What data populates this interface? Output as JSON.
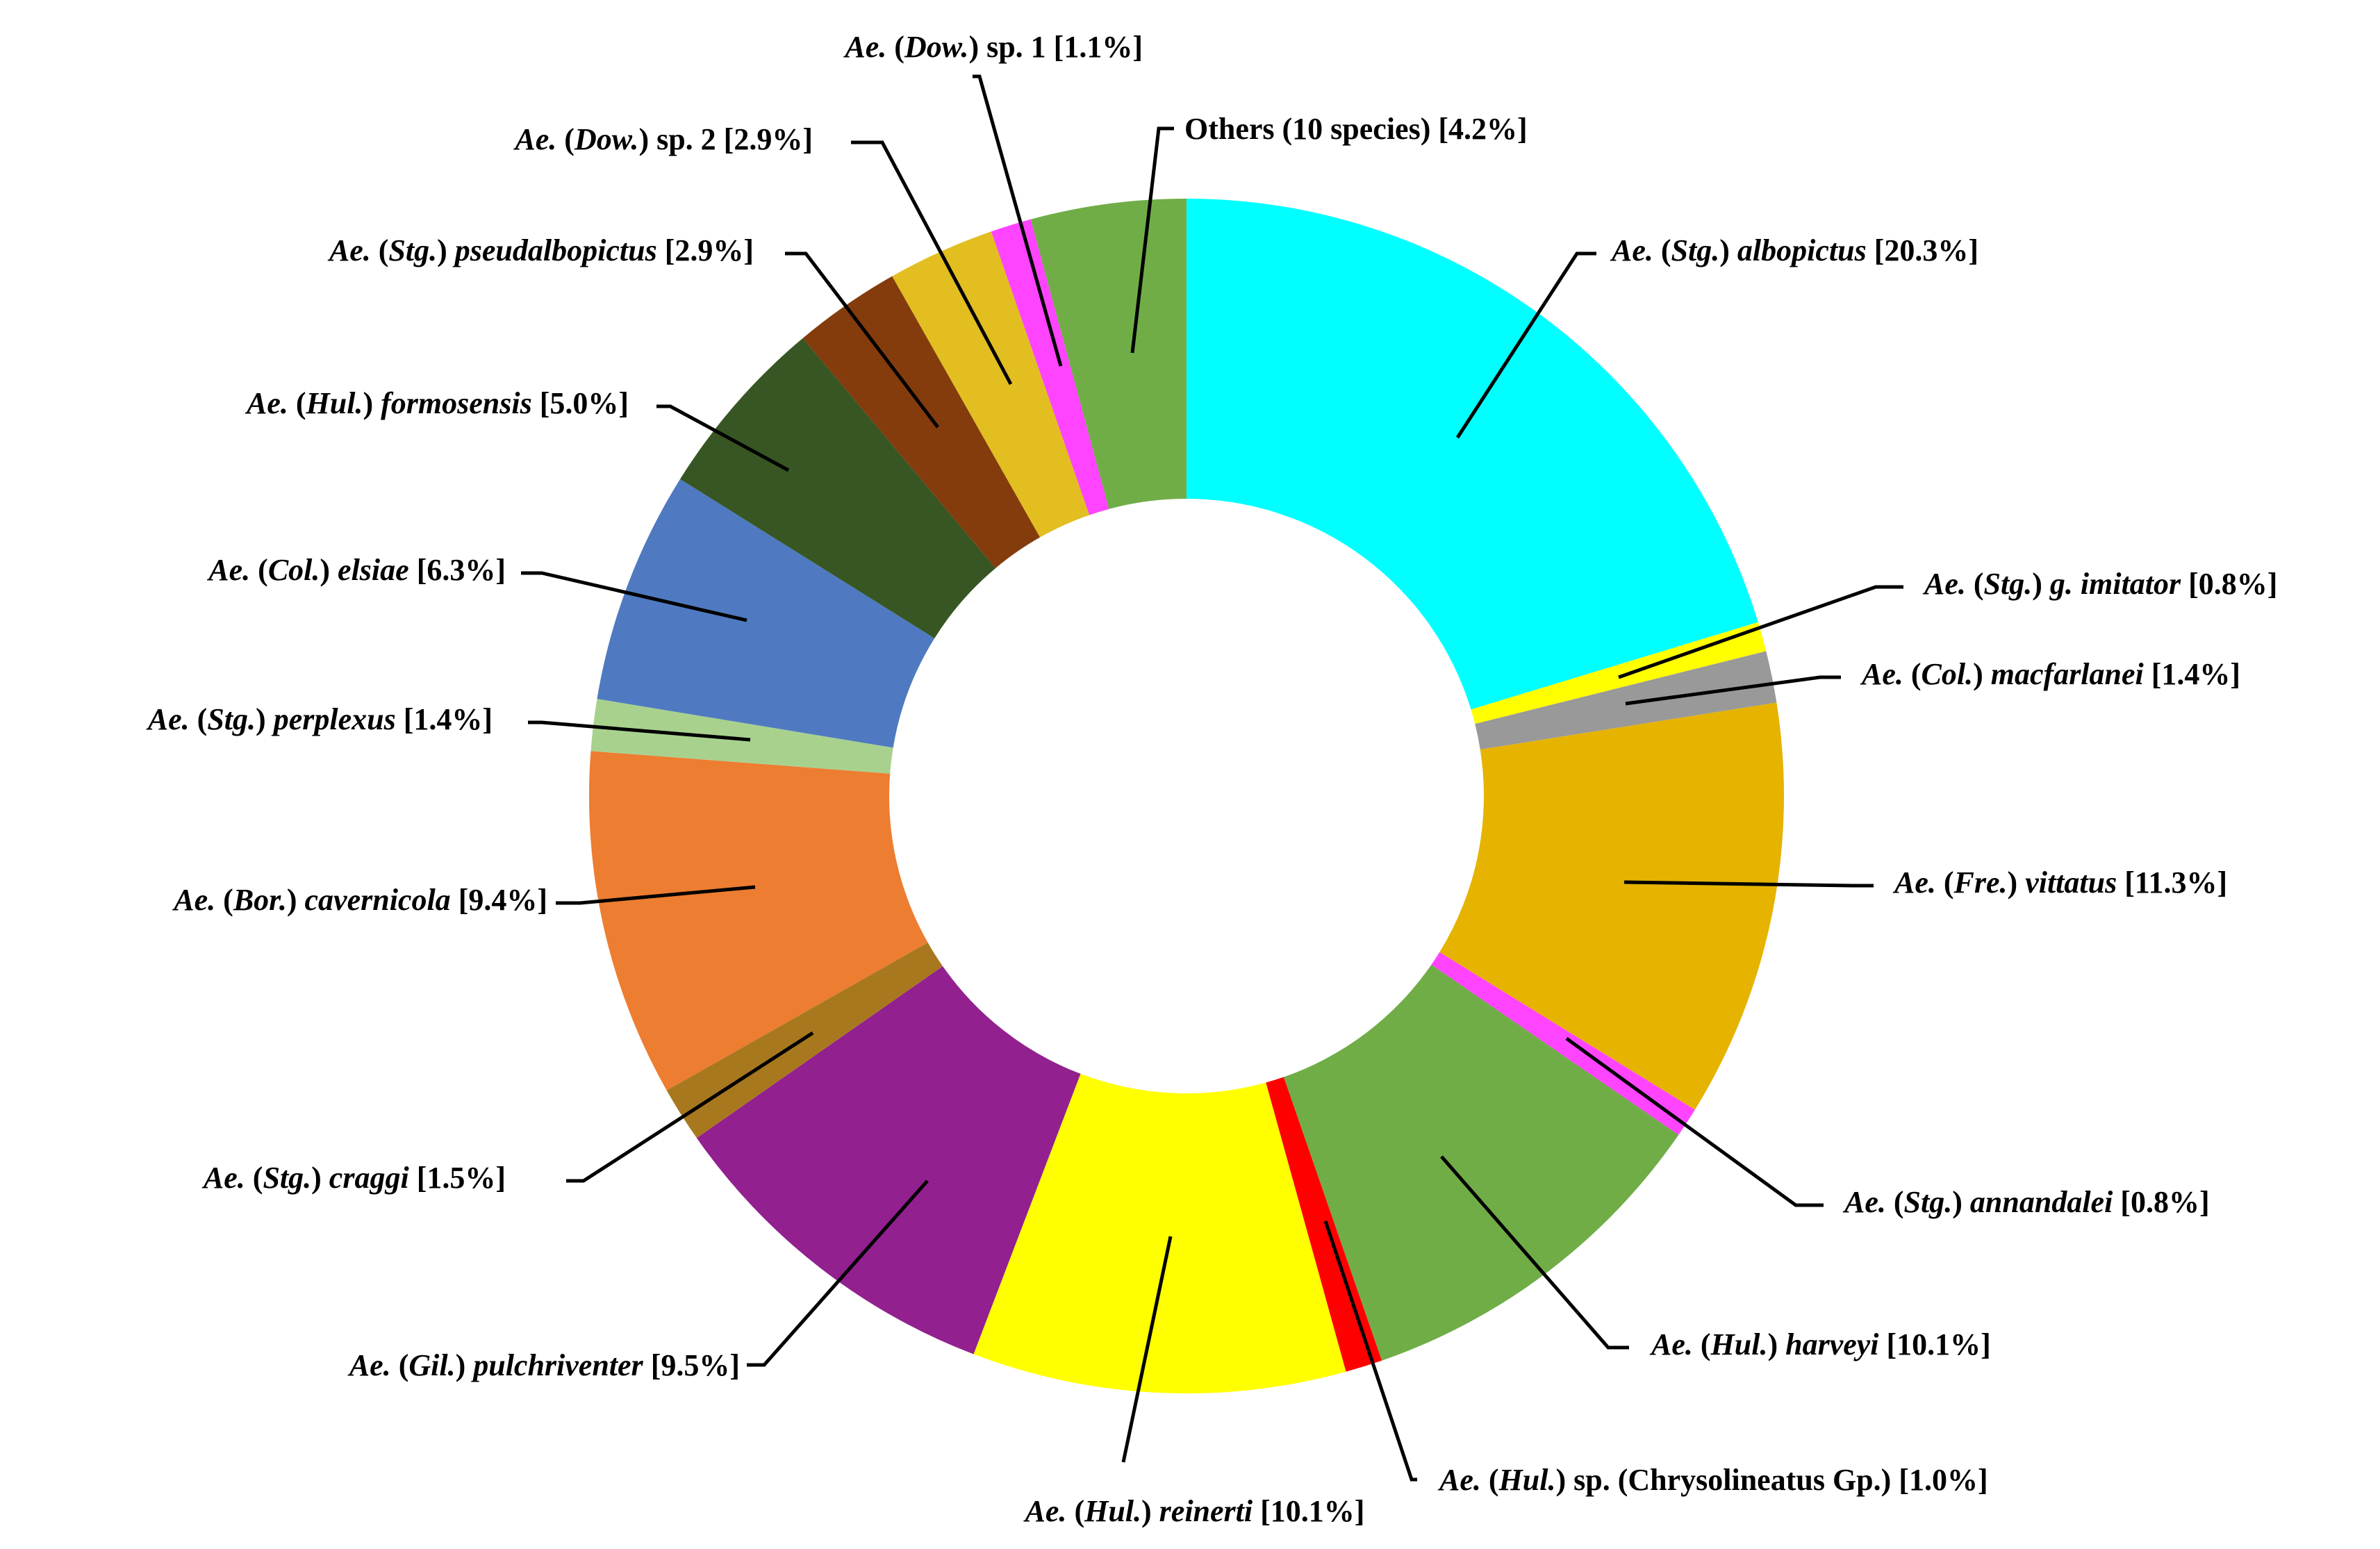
{
  "chart_data": {
    "type": "pie",
    "donut": true,
    "unit": "%",
    "direction": "clockwise",
    "start": "12 o'clock",
    "title": "",
    "slices": [
      {
        "label_parts": [
          [
            "Ae.",
            "i"
          ],
          [
            " (",
            "n"
          ],
          [
            "Stg.",
            "i"
          ],
          [
            ") ",
            "n"
          ],
          [
            "albopictus",
            "i"
          ],
          [
            " [20.3%]",
            "n"
          ]
        ],
        "value": 20.3,
        "color": "#00FFFF"
      },
      {
        "label_parts": [
          [
            "Ae.",
            "i"
          ],
          [
            " (",
            "n"
          ],
          [
            "Stg.",
            "i"
          ],
          [
            ") ",
            "n"
          ],
          [
            "g. imitator",
            "i"
          ],
          [
            " [0.8%]",
            "n"
          ]
        ],
        "value": 0.8,
        "color": "#FFFF00"
      },
      {
        "label_parts": [
          [
            "Ae.",
            "i"
          ],
          [
            " (",
            "n"
          ],
          [
            "Col.",
            "i"
          ],
          [
            ") ",
            "n"
          ],
          [
            "macfarlanei",
            "i"
          ],
          [
            " [1.4%]",
            "n"
          ]
        ],
        "value": 1.4,
        "color": "#999999"
      },
      {
        "label_parts": [
          [
            "Ae.",
            "i"
          ],
          [
            " (",
            "n"
          ],
          [
            "Fre.",
            "i"
          ],
          [
            ") ",
            "n"
          ],
          [
            "vittatus",
            "i"
          ],
          [
            " [11.3%]",
            "n"
          ]
        ],
        "value": 11.3,
        "color": "#E5B300"
      },
      {
        "label_parts": [
          [
            "Ae.",
            "i"
          ],
          [
            " (",
            "n"
          ],
          [
            "Stg.",
            "i"
          ],
          [
            ") ",
            "n"
          ],
          [
            "annandalei",
            "i"
          ],
          [
            " [0.8%]",
            "n"
          ]
        ],
        "value": 0.8,
        "color": "#FF44FF"
      },
      {
        "label_parts": [
          [
            "Ae.",
            "i"
          ],
          [
            " (",
            "n"
          ],
          [
            "Hul.",
            "i"
          ],
          [
            ") ",
            "n"
          ],
          [
            "harveyi",
            "i"
          ],
          [
            " [10.1%]",
            "n"
          ]
        ],
        "value": 10.1,
        "color": "#70AD47"
      },
      {
        "label_parts": [
          [
            "Ae.",
            "i"
          ],
          [
            " (",
            "n"
          ],
          [
            "Hul.",
            "i"
          ],
          [
            ") sp. (Chrysolineatus Gp.) [1.0%]",
            "n"
          ]
        ],
        "value": 1.0,
        "color": "#FF0000"
      },
      {
        "label_parts": [
          [
            "Ae.",
            "i"
          ],
          [
            " (",
            "n"
          ],
          [
            "Hul.",
            "i"
          ],
          [
            ") ",
            "n"
          ],
          [
            "reinerti",
            "i"
          ],
          [
            " [10.1%]",
            "n"
          ]
        ],
        "value": 10.1,
        "color": "#FFFF00"
      },
      {
        "label_parts": [
          [
            "Ae.",
            "i"
          ],
          [
            " (",
            "n"
          ],
          [
            "Gil.",
            "i"
          ],
          [
            ") ",
            "n"
          ],
          [
            "pulchriventer",
            "i"
          ],
          [
            " [9.5%]",
            "n"
          ]
        ],
        "value": 9.5,
        "color": "#92208F"
      },
      {
        "label_parts": [
          [
            "Ae.",
            "i"
          ],
          [
            " (",
            "n"
          ],
          [
            "Stg.",
            "i"
          ],
          [
            ") ",
            "n"
          ],
          [
            "craggi",
            "i"
          ],
          [
            " [1.5%]",
            "n"
          ]
        ],
        "value": 1.5,
        "color": "#A8781F"
      },
      {
        "label_parts": [
          [
            "Ae.",
            "i"
          ],
          [
            " (",
            "n"
          ],
          [
            "Bor.",
            "i"
          ],
          [
            ") ",
            "n"
          ],
          [
            "cavernicola",
            "i"
          ],
          [
            " [9.4%]",
            "n"
          ]
        ],
        "value": 9.4,
        "color": "#ED7D31"
      },
      {
        "label_parts": [
          [
            "Ae.",
            "i"
          ],
          [
            " (",
            "n"
          ],
          [
            "Stg.",
            "i"
          ],
          [
            ") ",
            "n"
          ],
          [
            "perplexus",
            "i"
          ],
          [
            " [1.4%]",
            "n"
          ]
        ],
        "value": 1.4,
        "color": "#A9D18E"
      },
      {
        "label_parts": [
          [
            "Ae.",
            "i"
          ],
          [
            " (",
            "n"
          ],
          [
            "Col.",
            "i"
          ],
          [
            ") ",
            "n"
          ],
          [
            "elsiae",
            "i"
          ],
          [
            " [6.3%]",
            "n"
          ]
        ],
        "value": 6.3,
        "color": "#4F7AC1"
      },
      {
        "label_parts": [
          [
            "Ae.",
            "i"
          ],
          [
            " (",
            "n"
          ],
          [
            "Hul.",
            "i"
          ],
          [
            ") ",
            "n"
          ],
          [
            "formosensis",
            "i"
          ],
          [
            " [5.0%]",
            "n"
          ]
        ],
        "value": 5.0,
        "color": "#375623"
      },
      {
        "label_parts": [
          [
            "Ae.",
            "i"
          ],
          [
            " (",
            "n"
          ],
          [
            "Stg.",
            "i"
          ],
          [
            ") ",
            "n"
          ],
          [
            "pseudalbopictus",
            "i"
          ],
          [
            " [2.9%]",
            "n"
          ]
        ],
        "value": 2.9,
        "color": "#843C0C"
      },
      {
        "label_parts": [
          [
            "Ae.",
            "i"
          ],
          [
            " (",
            "n"
          ],
          [
            "Dow.",
            "i"
          ],
          [
            ") sp. 2 [2.9%]",
            "n"
          ]
        ],
        "value": 2.9,
        "color": "#E2BE21"
      },
      {
        "label_parts": [
          [
            "Ae.",
            "i"
          ],
          [
            " (",
            "n"
          ],
          [
            "Dow.",
            "i"
          ],
          [
            ") sp. 1 [1.1%]",
            "n"
          ]
        ],
        "value": 1.1,
        "color": "#FF44FF"
      },
      {
        "label_parts": [
          [
            "Others (10 species) [4.2%]",
            "n"
          ]
        ],
        "value": 4.2,
        "color": "#70AD47"
      }
    ]
  }
}
